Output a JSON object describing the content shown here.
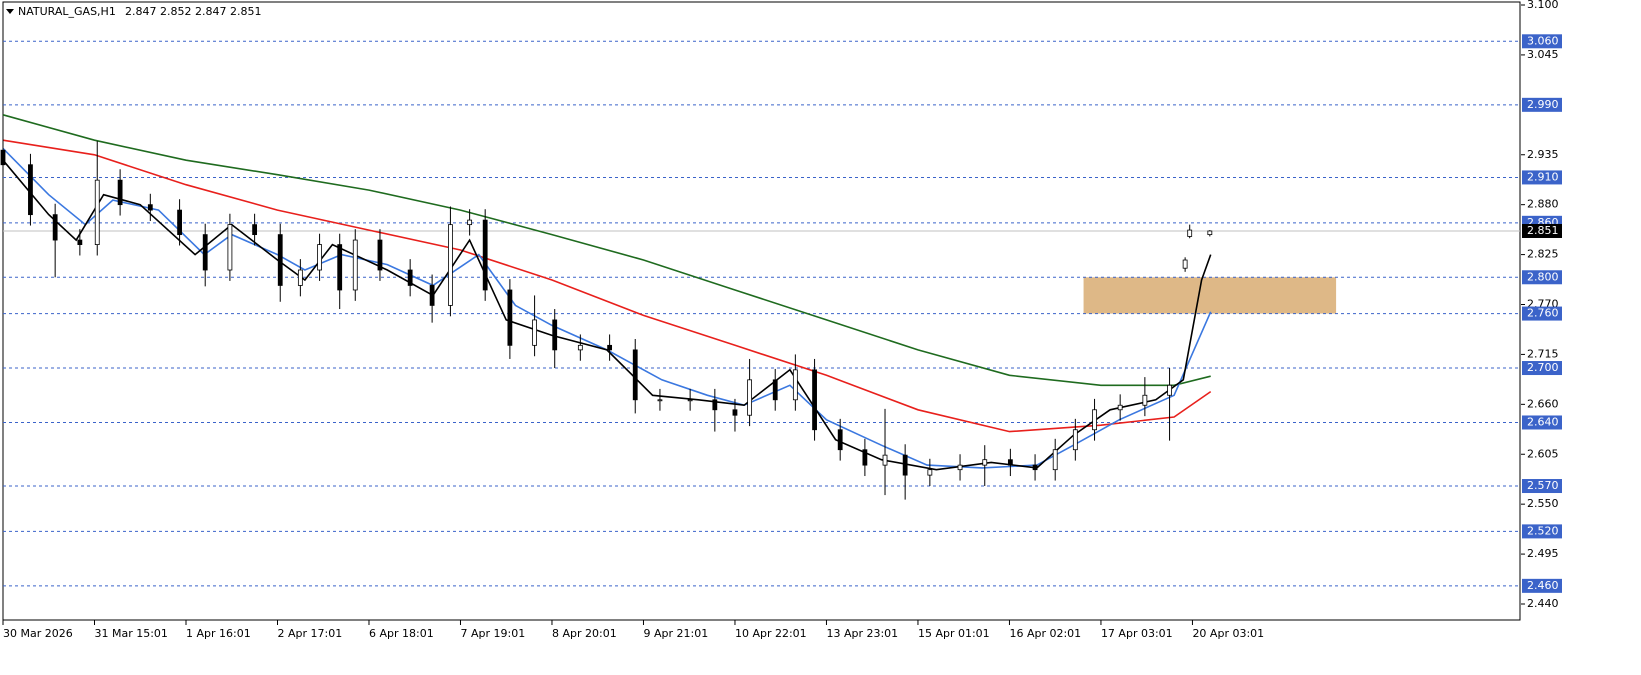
{
  "chart_data": {
    "type": "candlestick",
    "title": "NATURAL_GAS,H1",
    "header_values": [
      2.847,
      2.852,
      2.847,
      2.851
    ],
    "xlim": [
      0,
      16.58
    ],
    "xticks": [
      {
        "value": 0,
        "label": "30 Mar 2026"
      },
      {
        "value": 1,
        "label": "31 Mar 15:01"
      },
      {
        "value": 2,
        "label": "1 Apr 16:01"
      },
      {
        "value": 3,
        "label": "2 Apr 17:01"
      },
      {
        "value": 4,
        "label": "6 Apr 18:01"
      },
      {
        "value": 5,
        "label": "7 Apr 19:01"
      },
      {
        "value": 6,
        "label": "8 Apr 20:01"
      },
      {
        "value": 7,
        "label": "9 Apr 21:01"
      },
      {
        "value": 8,
        "label": "10 Apr 22:01"
      },
      {
        "value": 9,
        "label": "13 Apr 23:01"
      },
      {
        "value": 10,
        "label": "15 Apr 01:01"
      },
      {
        "value": 11,
        "label": "16 Apr 02:01"
      },
      {
        "value": 12,
        "label": "17 Apr 03:01"
      },
      {
        "value": 13,
        "label": "20 Apr 03:01"
      }
    ],
    "ylim": [
      2.44,
      3.1
    ],
    "yticks": [
      {
        "value": 3.1,
        "label": "3.100"
      },
      3.045,
      2.935,
      {
        "value": 2.88,
        "label": "2.880"
      },
      2.825,
      {
        "value": 2.77,
        "label": "2.770"
      },
      2.715,
      {
        "value": 2.66,
        "label": "2.660"
      },
      2.605,
      {
        "value": 2.55,
        "label": "2.550"
      },
      2.495,
      {
        "value": 2.44,
        "label": "2.440"
      }
    ],
    "levels": [
      {
        "value": 3.06,
        "label": "3.060"
      },
      {
        "value": 2.99,
        "label": "2.990"
      },
      {
        "value": 2.91,
        "label": "2.910"
      },
      {
        "value": 2.86,
        "label": "2.860"
      },
      {
        "value": 2.8,
        "label": "2.800"
      },
      {
        "value": 2.76,
        "label": "2.760"
      },
      {
        "value": 2.7,
        "label": "2.700"
      },
      {
        "value": 2.64,
        "label": "2.640"
      },
      {
        "value": 2.57,
        "label": "2.570"
      },
      {
        "value": 2.52,
        "label": "2.520"
      },
      {
        "value": 2.46,
        "label": "2.460"
      }
    ],
    "level_color": "#3b63c9",
    "current_price": 2.851,
    "candles": {
      "color": "#000000",
      "x": [
        0,
        0.3,
        0.57,
        0.84,
        1.03,
        1.28,
        1.61,
        1.93,
        2.21,
        2.48,
        2.75,
        3.03,
        3.25,
        3.46,
        3.68,
        3.85,
        4.12,
        4.45,
        4.69,
        4.89,
        5.1,
        5.27,
        5.54,
        5.81,
        6.03,
        6.31,
        6.63,
        6.91,
        7.18,
        7.51,
        7.78,
        8,
        8.16,
        8.44,
        8.66,
        8.87,
        9.15,
        9.42,
        9.64,
        9.86,
        10.13,
        10.46,
        10.73,
        11.01,
        11.28,
        11.5,
        11.72,
        11.93,
        12.21,
        12.48,
        12.75,
        12.92,
        12.97,
        13.19
      ],
      "open": [
        2.94,
        2.924,
        2.869,
        2.841,
        2.836,
        2.907,
        2.88,
        2.874,
        2.847,
        2.808,
        2.858,
        2.847,
        2.791,
        2.808,
        2.836,
        2.786,
        2.841,
        2.808,
        2.791,
        2.769,
        2.858,
        2.863,
        2.786,
        2.725,
        2.753,
        2.72,
        2.725,
        2.72,
        2.665,
        2.665,
        2.665,
        2.654,
        2.648,
        2.687,
        2.665,
        2.698,
        2.632,
        2.61,
        2.593,
        2.604,
        2.582,
        2.588,
        2.593,
        2.599,
        2.593,
        2.588,
        2.61,
        2.632,
        2.654,
        2.659,
        2.67,
        2.81,
        2.845,
        2.847
      ],
      "high": [
        2.952,
        2.936,
        2.881,
        2.853,
        2.95,
        2.919,
        2.892,
        2.886,
        2.859,
        2.87,
        2.87,
        2.859,
        2.82,
        2.848,
        2.848,
        2.853,
        2.853,
        2.82,
        2.803,
        2.878,
        2.875,
        2.875,
        2.798,
        2.78,
        2.765,
        2.737,
        2.737,
        2.732,
        2.677,
        2.677,
        2.677,
        2.666,
        2.71,
        2.699,
        2.715,
        2.71,
        2.644,
        2.622,
        2.655,
        2.616,
        2.6,
        2.605,
        2.615,
        2.611,
        2.605,
        2.622,
        2.644,
        2.666,
        2.671,
        2.69,
        2.7,
        2.822,
        2.858,
        2.852
      ],
      "low": [
        2.912,
        2.857,
        2.8,
        2.824,
        2.824,
        2.868,
        2.862,
        2.835,
        2.79,
        2.796,
        2.835,
        2.773,
        2.779,
        2.796,
        2.765,
        2.774,
        2.796,
        2.779,
        2.75,
        2.757,
        2.846,
        2.774,
        2.71,
        2.713,
        2.7,
        2.708,
        2.708,
        2.65,
        2.653,
        2.653,
        2.63,
        2.63,
        2.636,
        2.653,
        2.653,
        2.62,
        2.598,
        2.581,
        2.56,
        2.555,
        2.57,
        2.576,
        2.57,
        2.581,
        2.576,
        2.576,
        2.598,
        2.62,
        2.642,
        2.647,
        2.62,
        2.806,
        2.843,
        2.845
      ],
      "close": [
        2.924,
        2.869,
        2.841,
        2.836,
        2.907,
        2.88,
        2.874,
        2.847,
        2.808,
        2.858,
        2.847,
        2.791,
        2.808,
        2.836,
        2.786,
        2.841,
        2.808,
        2.791,
        2.769,
        2.858,
        2.863,
        2.786,
        2.725,
        2.753,
        2.72,
        2.725,
        2.72,
        2.665,
        2.665,
        2.665,
        2.654,
        2.648,
        2.687,
        2.665,
        2.698,
        2.632,
        2.61,
        2.593,
        2.604,
        2.582,
        2.588,
        2.593,
        2.599,
        2.593,
        2.588,
        2.61,
        2.632,
        2.654,
        2.659,
        2.67,
        2.681,
        2.819,
        2.852,
        2.851
      ]
    },
    "series": [
      {
        "color": "#1f6b1f",
        "x": [
          0,
          1,
          2,
          3,
          4,
          5,
          6,
          7,
          8,
          9,
          10,
          11,
          12,
          12.8,
          13.2
        ],
        "values": [
          2.979,
          2.951,
          2.929,
          2.913,
          2.896,
          2.874,
          2.847,
          2.819,
          2.786,
          2.753,
          2.72,
          2.692,
          2.681,
          2.681,
          2.691
        ]
      },
      {
        "color": "#e8201c",
        "x": [
          0,
          1,
          2,
          3,
          4,
          5,
          6,
          7,
          8,
          9,
          10,
          11,
          12,
          12.8,
          13.2
        ],
        "values": [
          2.951,
          2.935,
          2.902,
          2.874,
          2.852,
          2.83,
          2.797,
          2.758,
          2.725,
          2.692,
          2.654,
          2.63,
          2.637,
          2.646,
          2.674
        ]
      },
      {
        "color": "#3b78e0",
        "x": [
          0,
          0.5,
          0.9,
          1.2,
          1.7,
          2.2,
          2.5,
          3,
          3.3,
          3.7,
          4.2,
          4.7,
          5.2,
          5.6,
          6,
          6.6,
          7.2,
          7.7,
          8.1,
          8.6,
          9,
          9.6,
          10.1,
          10.7,
          11.3,
          11.7,
          12.2,
          12.8,
          13.2
        ],
        "values": [
          2.942,
          2.891,
          2.858,
          2.885,
          2.874,
          2.825,
          2.847,
          2.825,
          2.808,
          2.825,
          2.814,
          2.791,
          2.825,
          2.769,
          2.747,
          2.72,
          2.687,
          2.67,
          2.659,
          2.681,
          2.643,
          2.615,
          2.593,
          2.59,
          2.593,
          2.615,
          2.643,
          2.67,
          2.762
        ]
      },
      {
        "color": "#000000",
        "x": [
          0,
          0.5,
          0.8,
          1.1,
          1.5,
          2.1,
          2.5,
          3,
          3.3,
          3.6,
          4.2,
          4.7,
          5.1,
          5.5,
          6,
          6.6,
          7.1,
          7.6,
          8.1,
          8.6,
          9.1,
          9.6,
          10.2,
          10.8,
          11.3,
          11.7,
          12.1,
          12.6,
          12.9,
          13.1,
          13.2
        ],
        "values": [
          2.929,
          2.869,
          2.841,
          2.891,
          2.88,
          2.825,
          2.858,
          2.819,
          2.797,
          2.836,
          2.808,
          2.78,
          2.841,
          2.753,
          2.736,
          2.72,
          2.67,
          2.665,
          2.659,
          2.698,
          2.621,
          2.599,
          2.588,
          2.596,
          2.59,
          2.626,
          2.654,
          2.665,
          2.687,
          2.797,
          2.825
        ]
      }
    ],
    "zones": [
      {
        "x": [
          11.81,
          14.57
        ],
        "y": [
          2.76,
          2.8
        ],
        "color": "#deb887"
      }
    ]
  }
}
